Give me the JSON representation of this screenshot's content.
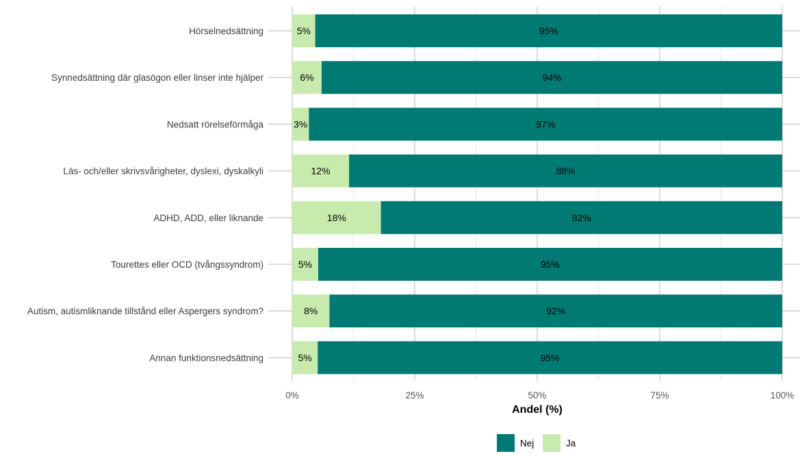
{
  "chart_data": {
    "type": "bar",
    "orientation": "horizontal",
    "stacked": true,
    "categories": [
      "Hörselnedsättning",
      "Synnedsättning där glasögon eller linser inte hjälper",
      "Nedsatt rörelseförmåga",
      "Läs- och/eller skrivsvårigheter, dyslexi, dyskalkyli",
      "ADHD, ADD, eller liknande",
      "Tourettes eller OCD (tvångssyndrom)",
      "Autism, autismliknande tillstånd eller Aspergers syndrom?",
      "Annan funktionsnedsättning"
    ],
    "series": [
      {
        "name": "Ja",
        "color": "#c7ebad",
        "values": [
          4.7,
          6.0,
          3.4,
          11.6,
          18.1,
          5.3,
          7.6,
          5.2
        ],
        "labels": [
          "5%",
          "6%",
          "3%",
          "12%",
          "18%",
          "5%",
          "8%",
          "5%"
        ]
      },
      {
        "name": "Nej",
        "color": "#007b73",
        "values": [
          95.3,
          94.0,
          96.6,
          88.4,
          81.9,
          94.7,
          92.4,
          94.8
        ],
        "labels": [
          "95%",
          "94%",
          "97%",
          "88%",
          "82%",
          "95%",
          "92%",
          "95%"
        ]
      }
    ],
    "xlabel": "Andel (%)",
    "ylabel": "",
    "xlim": [
      0,
      100
    ],
    "xticks": [
      0,
      25,
      50,
      75,
      100
    ],
    "xtick_labels": [
      "0%",
      "25%",
      "50%",
      "75%",
      "100%"
    ],
    "grid": true,
    "legend": {
      "position": "bottom",
      "order": [
        "Nej",
        "Ja"
      ]
    }
  }
}
